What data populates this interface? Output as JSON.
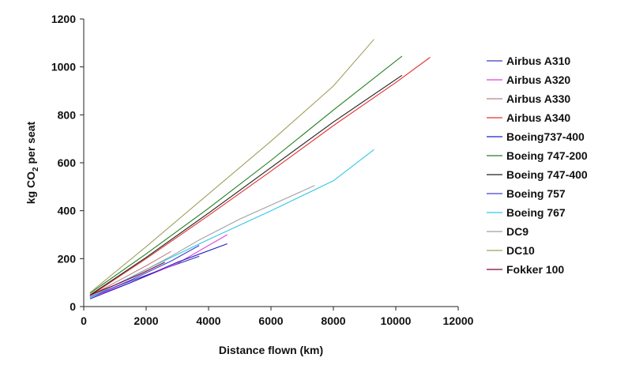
{
  "chart_data": {
    "type": "line",
    "title": "",
    "xlabel": "Distance flown (km)",
    "ylabel": {
      "prefix": "kg CO",
      "subscript": "2",
      "suffix": " per seat"
    },
    "xlim": [
      0,
      12000
    ],
    "ylim": [
      0,
      1200
    ],
    "x_ticks": [
      "0",
      "2000",
      "4000",
      "6000",
      "8000",
      "10000",
      "12000"
    ],
    "y_ticks": [
      "0",
      "200",
      "400",
      "600",
      "800",
      "1000",
      "1200"
    ],
    "grid": false,
    "legend_position": "right",
    "series": [
      {
        "name": "Airbus A310",
        "color": "#3a3ab8",
        "points": [
          [
            200,
            40
          ],
          [
            1200,
            92
          ],
          [
            2400,
            150
          ],
          [
            3700,
            210
          ]
        ]
      },
      {
        "name": "Airbus A320",
        "color": "#e040e0",
        "points": [
          [
            200,
            38
          ],
          [
            1500,
            100
          ],
          [
            3000,
            180
          ],
          [
            4600,
            300
          ]
        ]
      },
      {
        "name": "Airbus A330",
        "color": "#c08080",
        "points": [
          [
            200,
            45
          ],
          [
            1000,
            100
          ],
          [
            2000,
            170
          ],
          [
            2800,
            230
          ]
        ]
      },
      {
        "name": "Airbus A340",
        "color": "#e83030",
        "points": [
          [
            200,
            45
          ],
          [
            2000,
            200
          ],
          [
            4000,
            380
          ],
          [
            6000,
            565
          ],
          [
            8000,
            755
          ],
          [
            10000,
            935
          ],
          [
            11100,
            1040
          ]
        ]
      },
      {
        "name": "Boeing737-400",
        "color": "#2020c0",
        "points": [
          [
            200,
            32
          ],
          [
            1500,
            100
          ],
          [
            3000,
            185
          ],
          [
            4600,
            262
          ]
        ]
      },
      {
        "name": "Boeing 747-200",
        "color": "#208020",
        "points": [
          [
            200,
            55
          ],
          [
            2000,
            220
          ],
          [
            4000,
            410
          ],
          [
            6000,
            610
          ],
          [
            8000,
            820
          ],
          [
            10200,
            1045
          ]
        ]
      },
      {
        "name": "Boeing 747-400",
        "color": "#202020",
        "points": [
          [
            200,
            48
          ],
          [
            2000,
            205
          ],
          [
            4000,
            390
          ],
          [
            6000,
            580
          ],
          [
            8000,
            770
          ],
          [
            10200,
            965
          ]
        ]
      },
      {
        "name": "Boeing 757",
        "color": "#4040d0",
        "points": [
          [
            200,
            38
          ],
          [
            1500,
            110
          ],
          [
            2800,
            190
          ],
          [
            3700,
            255
          ]
        ]
      },
      {
        "name": "Boeing 767",
        "color": "#30c8e8",
        "points": [
          [
            200,
            38
          ],
          [
            2000,
            155
          ],
          [
            4000,
            280
          ],
          [
            6000,
            400
          ],
          [
            8000,
            525
          ],
          [
            9300,
            655
          ]
        ]
      },
      {
        "name": "DC9",
        "color": "#a0a0a0",
        "points": [
          [
            200,
            42
          ],
          [
            1500,
            120
          ],
          [
            2800,
            210
          ],
          [
            3700,
            278
          ],
          [
            5000,
            365
          ],
          [
            7400,
            505
          ]
        ]
      },
      {
        "name": "DC10",
        "color": "#a0a060",
        "points": [
          [
            200,
            58
          ],
          [
            2000,
            250
          ],
          [
            4000,
            470
          ],
          [
            6000,
            690
          ],
          [
            8000,
            920
          ],
          [
            9300,
            1115
          ]
        ]
      },
      {
        "name": "Fokker 100",
        "color": "#800040",
        "points": [
          [
            200,
            48
          ],
          [
            1000,
            90
          ],
          [
            1800,
            135
          ],
          [
            2600,
            185
          ]
        ]
      }
    ]
  }
}
